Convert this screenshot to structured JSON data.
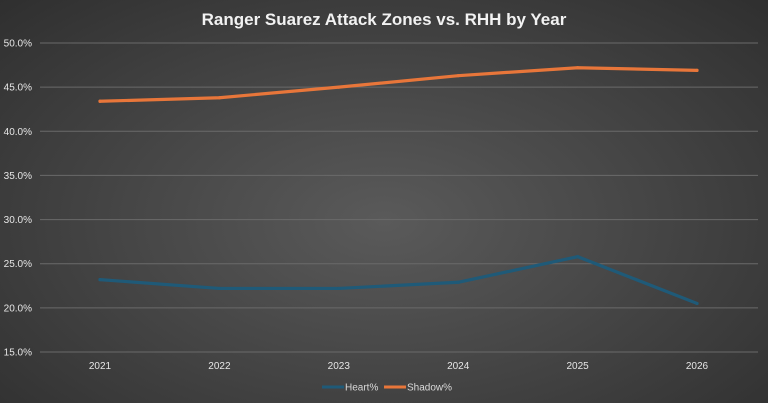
{
  "chart_data": {
    "type": "line",
    "title": "Ranger Suarez Attack Zones vs. RHH by Year",
    "xlabel": "",
    "ylabel": "",
    "categories": [
      "2021",
      "2022",
      "2023",
      "2024",
      "2025",
      "2026"
    ],
    "ylim": [
      15.0,
      50.0
    ],
    "yticks": [
      "15.0%",
      "20.0%",
      "25.0%",
      "30.0%",
      "35.0%",
      "40.0%",
      "45.0%",
      "50.0%"
    ],
    "grid": true,
    "legend_position": "bottom",
    "series": [
      {
        "name": "Heart%",
        "color": "#1f5a78",
        "values": [
          23.2,
          22.2,
          22.2,
          22.9,
          25.8,
          20.5
        ]
      },
      {
        "name": "Shadow%",
        "color": "#e8763a",
        "values": [
          43.4,
          43.8,
          45.0,
          46.3,
          47.2,
          46.9
        ]
      }
    ]
  }
}
